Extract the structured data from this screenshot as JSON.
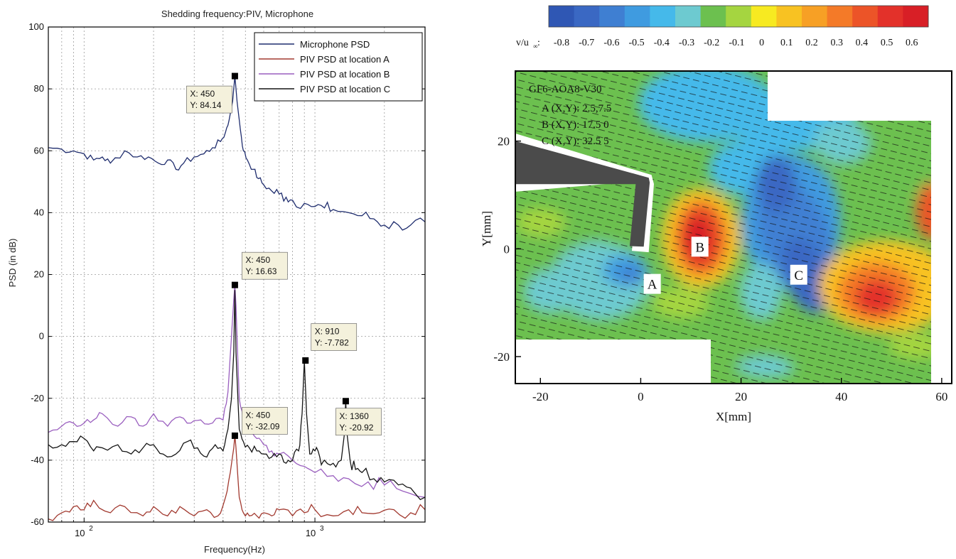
{
  "chart_data": [
    {
      "type": "line",
      "title": "Shedding frequency:PIV, Microphone",
      "xlabel": "Frequency(Hz)",
      "ylabel": "PSD  (in dB)",
      "xscale": "log",
      "xlim": [
        70,
        3000
      ],
      "ylim": [
        -60,
        100
      ],
      "yticks": [
        -60,
        -40,
        -20,
        0,
        20,
        40,
        60,
        80,
        100
      ],
      "xticks": [
        {
          "value": 100,
          "label": "10",
          "exp": "2"
        },
        {
          "value": 1000,
          "label": "10",
          "exp": "3"
        }
      ],
      "grid": true,
      "legend_position": "top-right",
      "legend": [
        "Microphone PSD",
        "PIV PSD at location A",
        "PIV PSD at location B",
        "PIV PSD at location C"
      ],
      "series": [
        {
          "name": "Microphone PSD",
          "color": "#1f2d6e",
          "x": [
            70,
            80,
            90,
            100,
            110,
            120,
            130,
            150,
            170,
            190,
            210,
            230,
            250,
            270,
            300,
            330,
            360,
            390,
            410,
            425,
            440,
            450,
            460,
            475,
            490,
            510,
            540,
            570,
            600,
            650,
            700,
            750,
            800,
            900,
            1000,
            1100,
            1200,
            1400,
            1600,
            1800,
            2000,
            2300,
            2600,
            3000
          ],
          "y": [
            61,
            60.5,
            60,
            59,
            57,
            58,
            56,
            60,
            58,
            58,
            56,
            57,
            54,
            56,
            58,
            59,
            61,
            63,
            66,
            70,
            76,
            84.14,
            76,
            67,
            60,
            57,
            54,
            51,
            49,
            47,
            46,
            45,
            44,
            43,
            42,
            41.5,
            41,
            40,
            39,
            38,
            36,
            36,
            36,
            37
          ]
        },
        {
          "name": "PIV PSD at location A",
          "color": "#a23a30",
          "x": [
            70,
            80,
            90,
            100,
            110,
            130,
            150,
            180,
            200,
            230,
            260,
            300,
            340,
            380,
            410,
            430,
            445,
            450,
            455,
            470,
            490,
            520,
            560,
            600,
            650,
            700,
            800,
            900,
            1000,
            1200,
            1400,
            1600,
            1900,
            2200,
            2600,
            3000
          ],
          "y": [
            -59,
            -57,
            -55,
            -56,
            -53,
            -57,
            -55,
            -58,
            -55,
            -58,
            -55,
            -58,
            -56,
            -58,
            -52,
            -44,
            -36,
            -32.09,
            -36,
            -52,
            -57,
            -58,
            -58,
            -57,
            -58,
            -56,
            -58,
            -57,
            -56,
            -58,
            -56,
            -57,
            -57,
            -56,
            -57,
            -56
          ]
        },
        {
          "name": "PIV PSD at location B",
          "color": "#9a5fbf",
          "x": [
            70,
            80,
            90,
            100,
            110,
            120,
            140,
            160,
            180,
            200,
            230,
            260,
            290,
            320,
            360,
            400,
            420,
            435,
            445,
            450,
            455,
            470,
            490,
            520,
            560,
            600,
            650,
            700,
            800,
            900,
            1000,
            1200,
            1400,
            1700,
            2000,
            2400,
            3000
          ],
          "y": [
            -31,
            -29,
            -28,
            -28,
            -27,
            -25,
            -29,
            -26,
            -29,
            -25,
            -29,
            -26,
            -28,
            -27,
            -28,
            -27,
            -18,
            0,
            12,
            16.63,
            10,
            -20,
            -28,
            -31,
            -33,
            -35,
            -37,
            -38,
            -40,
            -42,
            -44,
            -45,
            -46,
            -47,
            -48,
            -50,
            -52
          ]
        },
        {
          "name": "PIV PSD at location C",
          "color": "#141414",
          "x": [
            70,
            80,
            90,
            100,
            110,
            120,
            140,
            160,
            180,
            200,
            220,
            250,
            280,
            310,
            340,
            370,
            400,
            420,
            435,
            445,
            450,
            455,
            470,
            490,
            520,
            560,
            600,
            650,
            700,
            750,
            800,
            850,
            880,
            900,
            920,
            950,
            1000,
            1050,
            1100,
            1200,
            1300,
            1340,
            1360,
            1380,
            1420,
            1500,
            1600,
            1800,
            2000,
            2300,
            2600,
            3000
          ],
          "y": [
            -35,
            -35,
            -34,
            -33,
            -37,
            -36,
            -35,
            -38,
            -36,
            -35,
            -38,
            -38,
            -34,
            -36,
            -39,
            -35,
            -37,
            -30,
            -20,
            -5,
            15,
            -5,
            -30,
            -34,
            -36,
            -37,
            -38,
            -39,
            -38,
            -41,
            -40,
            -37,
            -25,
            -7.782,
            -25,
            -38,
            -37,
            -39,
            -40,
            -41,
            -40,
            -32,
            -20.92,
            -32,
            -40,
            -43,
            -44,
            -46,
            -47,
            -48,
            -49,
            -52
          ]
        }
      ],
      "annotations": [
        {
          "x": 450,
          "y": 84.14,
          "text_x": "X: 450",
          "text_y": "Y: 84.14"
        },
        {
          "x": 450,
          "y": 16.63,
          "text_x": "X: 450",
          "text_y": "Y: 16.63"
        },
        {
          "x": 910,
          "y": -7.782,
          "text_x": "X: 910",
          "text_y": "Y: -7.782"
        },
        {
          "x": 1360,
          "y": -20.92,
          "text_x": "X: 1360",
          "text_y": "Y: -20.92"
        },
        {
          "x": 450,
          "y": -32.09,
          "text_x": "X: 450",
          "text_y": "Y: -32.09"
        }
      ]
    },
    {
      "type": "heatmap",
      "xlabel": "X[mm]",
      "ylabel": "Y[mm]",
      "xlim": [
        -25,
        62
      ],
      "ylim": [
        -25,
        33
      ],
      "xticks": [
        -20,
        0,
        20,
        40,
        60
      ],
      "yticks": [
        -20,
        0,
        20
      ],
      "colorbar_label": "v/u",
      "colorbar_label_sub": "∞",
      "colorbar_ticks": [
        "-0.8",
        "-0.7",
        "-0.6",
        "-0.5",
        "-0.4",
        "-0.3",
        "-0.2",
        "-0.1",
        "0",
        "0.1",
        "0.2",
        "0.3",
        "0.4",
        "0.5",
        "0.6"
      ],
      "colorbar_colors": [
        "#2f57b4",
        "#3a68c3",
        "#3f7fd2",
        "#3f9be0",
        "#45b9ea",
        "#6dcad0",
        "#6cc04f",
        "#a5d540",
        "#f7ea21",
        "#f8c222",
        "#f7a025",
        "#f47a28",
        "#ec5428",
        "#e3312a",
        "#d81f26"
      ],
      "info": {
        "case": "GF6-AOA8-V30",
        "locations": [
          "A (X,Y): 2.5,7.5",
          "B (X,Y): 17.5 0",
          "C (X,Y): 32.5 5"
        ]
      },
      "labels": [
        {
          "text": "A",
          "x": 2.3,
          "y": -6.5
        },
        {
          "text": "B",
          "x": 11.8,
          "y": 0.4
        },
        {
          "text": "C",
          "x": 31.5,
          "y": -4.8
        }
      ]
    }
  ]
}
